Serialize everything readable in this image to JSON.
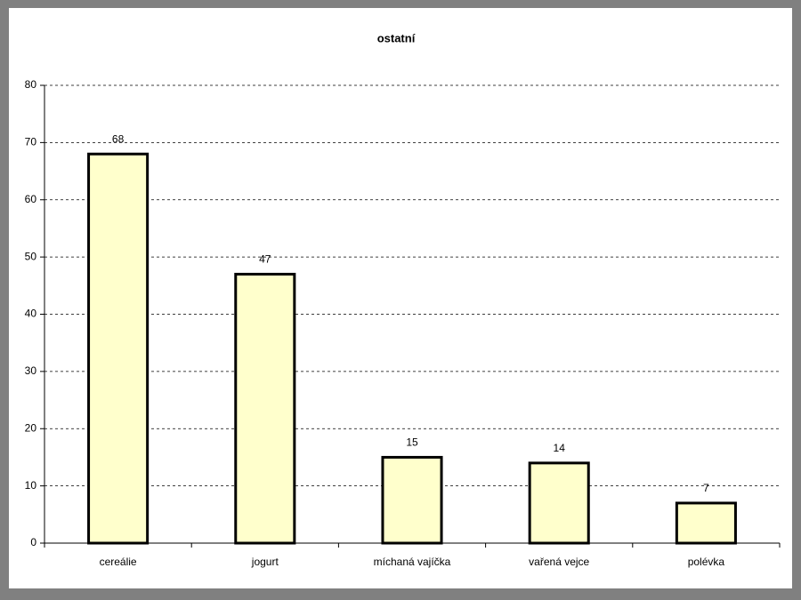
{
  "chart_data": {
    "type": "bar",
    "title": "ostatní",
    "categories": [
      "cereálie",
      "jogurt",
      "míchaná vajíčka",
      "vařená vejce",
      "polévka"
    ],
    "values": [
      68,
      47,
      15,
      14,
      7
    ],
    "color": "#ffffcc",
    "ylim": [
      0,
      80
    ],
    "yticks": [
      0,
      10,
      20,
      30,
      40,
      50,
      60,
      70,
      80
    ],
    "grid": true
  }
}
